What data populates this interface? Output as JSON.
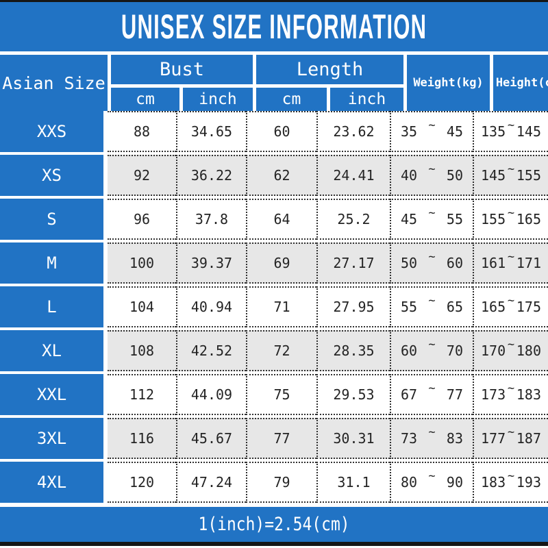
{
  "title": "UNISEX SIZE INFORMATION",
  "footer_note": "1(inch)=2.54(cm)",
  "tilde": "~",
  "colors": {
    "blue": "#2173c4",
    "alt_row": "#e7e7e7"
  },
  "header": {
    "asian_size": "Asian Size",
    "bust": "Bust",
    "length": "Length",
    "cm": "cm",
    "inch": "inch",
    "weight": "Weight(kg)",
    "height": "Height(cm)"
  },
  "rows": [
    {
      "size": "XXS",
      "bust_cm": "88",
      "bust_inch": "34.65",
      "length_cm": "60",
      "length_inch": "23.62",
      "weight_min": "35",
      "weight_max": "45",
      "height_min": "135",
      "height_max": "145"
    },
    {
      "size": "XS",
      "bust_cm": "92",
      "bust_inch": "36.22",
      "length_cm": "62",
      "length_inch": "24.41",
      "weight_min": "40",
      "weight_max": "50",
      "height_min": "145",
      "height_max": "155"
    },
    {
      "size": "S",
      "bust_cm": "96",
      "bust_inch": "37.8",
      "length_cm": "64",
      "length_inch": "25.2",
      "weight_min": "45",
      "weight_max": "55",
      "height_min": "155",
      "height_max": "165"
    },
    {
      "size": "M",
      "bust_cm": "100",
      "bust_inch": "39.37",
      "length_cm": "69",
      "length_inch": "27.17",
      "weight_min": "50",
      "weight_max": "60",
      "height_min": "161",
      "height_max": "171"
    },
    {
      "size": "L",
      "bust_cm": "104",
      "bust_inch": "40.94",
      "length_cm": "71",
      "length_inch": "27.95",
      "weight_min": "55",
      "weight_max": "65",
      "height_min": "165",
      "height_max": "175"
    },
    {
      "size": "XL",
      "bust_cm": "108",
      "bust_inch": "42.52",
      "length_cm": "72",
      "length_inch": "28.35",
      "weight_min": "60",
      "weight_max": "70",
      "height_min": "170",
      "height_max": "180"
    },
    {
      "size": "XXL",
      "bust_cm": "112",
      "bust_inch": "44.09",
      "length_cm": "75",
      "length_inch": "29.53",
      "weight_min": "67",
      "weight_max": "77",
      "height_min": "173",
      "height_max": "183"
    },
    {
      "size": "3XL",
      "bust_cm": "116",
      "bust_inch": "45.67",
      "length_cm": "77",
      "length_inch": "30.31",
      "weight_min": "73",
      "weight_max": "83",
      "height_min": "177",
      "height_max": "187"
    },
    {
      "size": "4XL",
      "bust_cm": "120",
      "bust_inch": "47.24",
      "length_cm": "79",
      "length_inch": "31.1",
      "weight_min": "80",
      "weight_max": "90",
      "height_min": "183",
      "height_max": "193"
    }
  ]
}
